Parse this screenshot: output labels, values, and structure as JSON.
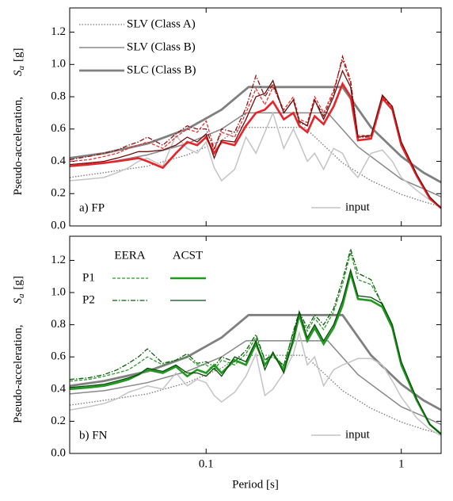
{
  "chart_data": [
    {
      "type": "line",
      "panel_label": "a) FP",
      "ylabel": "Pseudo-acceleration,",
      "ylabel_symbol": "S",
      "ylabel_subscript": "a",
      "ylabel_unit": "[g]",
      "log_x": true,
      "xlim": [
        0.02,
        1.6
      ],
      "ylim": [
        0,
        1.35
      ],
      "xticks": [
        0.1,
        1
      ],
      "xtick_labels": false,
      "yticks": [
        {
          "value": 0,
          "label": "0.0"
        },
        0.2,
        0.4,
        0.6,
        0.8,
        {
          "value": 1,
          "label": "1.0"
        },
        1.2
      ],
      "legend": "upper left",
      "x": [
        0.02,
        0.025,
        0.03,
        0.035,
        0.04,
        0.045,
        0.05,
        0.06,
        0.07,
        0.08,
        0.09,
        0.1,
        0.11,
        0.12,
        0.14,
        0.16,
        0.18,
        0.2,
        0.22,
        0.25,
        0.28,
        0.3,
        0.33,
        0.36,
        0.4,
        0.45,
        0.5,
        0.55,
        0.6,
        0.7,
        0.8,
        0.9,
        1.0,
        1.2,
        1.4,
        1.6
      ],
      "series": [
        {
          "name": "SLV (Class A)",
          "color": "#777777",
          "style": "dotted",
          "linewidth": 1.3,
          "x": [
            0.02,
            0.03,
            0.05,
            0.08,
            0.12,
            0.15,
            0.32,
            0.5,
            0.7,
            1.0,
            1.3,
            1.6
          ],
          "values": [
            0.3,
            0.33,
            0.37,
            0.44,
            0.53,
            0.61,
            0.61,
            0.39,
            0.28,
            0.195,
            0.15,
            0.12
          ]
        },
        {
          "name": "SLV (Class B)",
          "color": "#888888",
          "style": "solid",
          "linewidth": 1.5,
          "x": [
            0.02,
            0.03,
            0.05,
            0.08,
            0.12,
            0.16,
            0.42,
            0.6,
            1.0,
            1.3,
            1.6
          ],
          "values": [
            0.37,
            0.39,
            0.44,
            0.51,
            0.6,
            0.7,
            0.7,
            0.49,
            0.29,
            0.23,
            0.18
          ]
        },
        {
          "name": "SLC (Class B)",
          "color": "#808080",
          "style": "solid",
          "linewidth": 2.8,
          "x": [
            0.02,
            0.03,
            0.05,
            0.08,
            0.12,
            0.165,
            0.5,
            0.7,
            1.0,
            1.3,
            1.6
          ],
          "values": [
            0.42,
            0.45,
            0.51,
            0.6,
            0.72,
            0.86,
            0.86,
            0.61,
            0.43,
            0.33,
            0.27
          ]
        },
        {
          "name": "input",
          "legend_loc": "lower right",
          "color": "#c4c4c4",
          "style": "solid",
          "linewidth": 1.5,
          "values": [
            0.28,
            0.29,
            0.3,
            0.33,
            0.36,
            0.4,
            0.42,
            0.37,
            0.56,
            0.48,
            0.45,
            0.52,
            0.36,
            0.28,
            0.35,
            0.55,
            0.45,
            0.58,
            0.7,
            0.48,
            0.6,
            0.52,
            0.4,
            0.45,
            0.35,
            0.48,
            0.45,
            0.35,
            0.3,
            0.45,
            0.47,
            0.4,
            0.3,
            0.22,
            0.16,
            0.12
          ]
        },
        {
          "color": "#f03030",
          "style": "dashed",
          "linewidth": 1.3,
          "values": [
            0.4,
            0.41,
            0.43,
            0.45,
            0.48,
            0.5,
            0.52,
            0.48,
            0.55,
            0.6,
            0.58,
            0.65,
            0.48,
            0.58,
            0.55,
            0.7,
            0.85,
            0.75,
            0.86,
            0.72,
            0.8,
            0.66,
            0.64,
            0.8,
            0.7,
            0.84,
            1.03,
            0.88,
            0.56,
            0.56,
            0.8,
            0.73,
            0.52,
            0.31,
            0.17,
            0.11
          ]
        },
        {
          "color": "#8a1414",
          "style": "dashdot",
          "linewidth": 1.3,
          "values": [
            0.41,
            0.43,
            0.45,
            0.47,
            0.5,
            0.52,
            0.55,
            0.5,
            0.57,
            0.62,
            0.6,
            0.6,
            0.47,
            0.6,
            0.58,
            0.73,
            0.93,
            0.8,
            0.88,
            0.7,
            0.78,
            0.64,
            0.62,
            0.78,
            0.68,
            0.82,
            1.05,
            0.9,
            0.55,
            0.55,
            0.8,
            0.74,
            0.52,
            0.32,
            0.17,
            0.11
          ]
        },
        {
          "color": "#e8242a",
          "style": "solid",
          "linewidth": 2.6,
          "values": [
            0.37,
            0.38,
            0.39,
            0.4,
            0.41,
            0.42,
            0.4,
            0.36,
            0.45,
            0.52,
            0.5,
            0.55,
            0.45,
            0.52,
            0.5,
            0.62,
            0.7,
            0.72,
            0.77,
            0.66,
            0.7,
            0.62,
            0.58,
            0.68,
            0.63,
            0.74,
            0.88,
            0.8,
            0.53,
            0.54,
            0.79,
            0.72,
            0.5,
            0.31,
            0.17,
            0.11
          ]
        },
        {
          "color": "#6b0f0f",
          "style": "solid",
          "linewidth": 1.3,
          "values": [
            0.38,
            0.39,
            0.4,
            0.42,
            0.44,
            0.46,
            0.46,
            0.47,
            0.5,
            0.55,
            0.52,
            0.57,
            0.42,
            0.53,
            0.52,
            0.66,
            0.8,
            0.82,
            0.9,
            0.7,
            0.78,
            0.65,
            0.62,
            0.78,
            0.66,
            0.8,
            0.96,
            0.86,
            0.55,
            0.56,
            0.81,
            0.74,
            0.52,
            0.32,
            0.18,
            0.11
          ]
        }
      ]
    },
    {
      "type": "line",
      "panel_label": "b) FN",
      "xlabel": "Period [s]",
      "ylabel": "Pseudo-acceleration,",
      "ylabel_symbol": "S",
      "ylabel_subscript": "a",
      "ylabel_unit": "[g]",
      "log_x": true,
      "xlim": [
        0.02,
        1.6
      ],
      "ylim": [
        0,
        1.35
      ],
      "xticks": [
        0.1,
        1
      ],
      "xtick_labels": true,
      "yticks": [
        {
          "value": 0,
          "label": "0.0"
        },
        0.2,
        0.4,
        0.6,
        0.8,
        {
          "value": 1,
          "label": "1.0"
        },
        1.2
      ],
      "legend_columns": [
        "EERA",
        "ACST"
      ],
      "legend_rows": [
        "P1",
        "P2"
      ],
      "x": [
        0.02,
        0.025,
        0.03,
        0.035,
        0.04,
        0.045,
        0.05,
        0.06,
        0.07,
        0.08,
        0.09,
        0.1,
        0.11,
        0.12,
        0.14,
        0.16,
        0.18,
        0.2,
        0.22,
        0.25,
        0.28,
        0.3,
        0.33,
        0.36,
        0.4,
        0.45,
        0.5,
        0.55,
        0.6,
        0.7,
        0.8,
        0.9,
        1.0,
        1.2,
        1.4,
        1.6
      ],
      "series": [
        {
          "color": "#777777",
          "style": "dotted",
          "linewidth": 1.3,
          "x": [
            0.02,
            0.03,
            0.05,
            0.08,
            0.12,
            0.15,
            0.32,
            0.5,
            0.7,
            1.0,
            1.3,
            1.6
          ],
          "values": [
            0.3,
            0.33,
            0.37,
            0.44,
            0.53,
            0.61,
            0.61,
            0.39,
            0.28,
            0.195,
            0.15,
            0.12
          ]
        },
        {
          "color": "#888888",
          "style": "solid",
          "linewidth": 1.5,
          "x": [
            0.02,
            0.03,
            0.05,
            0.08,
            0.12,
            0.16,
            0.42,
            0.6,
            1.0,
            1.3,
            1.6
          ],
          "values": [
            0.37,
            0.39,
            0.44,
            0.51,
            0.6,
            0.7,
            0.7,
            0.49,
            0.29,
            0.23,
            0.18
          ]
        },
        {
          "color": "#808080",
          "style": "solid",
          "linewidth": 2.8,
          "x": [
            0.02,
            0.03,
            0.05,
            0.08,
            0.12,
            0.165,
            0.5,
            0.7,
            1.0,
            1.3,
            1.6
          ],
          "values": [
            0.42,
            0.45,
            0.51,
            0.6,
            0.72,
            0.86,
            0.86,
            0.61,
            0.43,
            0.33,
            0.27
          ]
        },
        {
          "name": "input",
          "legend_loc": "lower right",
          "color": "#c4c4c4",
          "style": "solid",
          "linewidth": 1.5,
          "values": [
            0.27,
            0.29,
            0.31,
            0.34,
            0.38,
            0.4,
            0.42,
            0.4,
            0.5,
            0.42,
            0.46,
            0.44,
            0.36,
            0.32,
            0.38,
            0.48,
            0.62,
            0.36,
            0.4,
            0.5,
            0.62,
            0.75,
            0.55,
            0.6,
            0.42,
            0.52,
            0.55,
            0.57,
            0.59,
            0.59,
            0.55,
            0.45,
            0.35,
            0.22,
            0.15,
            0.11
          ]
        },
        {
          "row": 0,
          "col": 0,
          "color": "#2a9a2a",
          "style": "dashed",
          "linewidth": 1.3,
          "values": [
            0.45,
            0.46,
            0.48,
            0.5,
            0.52,
            0.56,
            0.6,
            0.55,
            0.58,
            0.6,
            0.55,
            0.55,
            0.52,
            0.58,
            0.55,
            0.62,
            0.72,
            0.58,
            0.6,
            0.55,
            0.75,
            0.86,
            0.76,
            0.84,
            0.77,
            0.88,
            1.05,
            1.25,
            1.08,
            1.05,
            0.93,
            0.8,
            0.57,
            0.34,
            0.18,
            0.12
          ]
        },
        {
          "row": 1,
          "col": 0,
          "color": "#0e5e0e",
          "style": "dashdot",
          "linewidth": 1.3,
          "values": [
            0.46,
            0.47,
            0.49,
            0.52,
            0.56,
            0.6,
            0.65,
            0.56,
            0.58,
            0.62,
            0.56,
            0.57,
            0.54,
            0.6,
            0.57,
            0.64,
            0.74,
            0.58,
            0.62,
            0.54,
            0.76,
            0.88,
            0.78,
            0.86,
            0.8,
            0.9,
            1.08,
            1.27,
            1.12,
            1.08,
            0.92,
            0.79,
            0.56,
            0.34,
            0.18,
            0.12
          ]
        },
        {
          "row": 0,
          "col": 1,
          "color": "#1e9a1e",
          "style": "solid",
          "linewidth": 2.6,
          "values": [
            0.4,
            0.41,
            0.42,
            0.44,
            0.46,
            0.49,
            0.52,
            0.5,
            0.54,
            0.48,
            0.52,
            0.5,
            0.55,
            0.5,
            0.58,
            0.55,
            0.68,
            0.55,
            0.62,
            0.52,
            0.7,
            0.86,
            0.7,
            0.78,
            0.68,
            0.78,
            0.92,
            1.12,
            0.96,
            0.95,
            0.91,
            0.78,
            0.55,
            0.33,
            0.18,
            0.12
          ]
        },
        {
          "row": 1,
          "col": 1,
          "color": "#0c4a0c",
          "style": "solid",
          "linewidth": 1.3,
          "values": [
            0.41,
            0.42,
            0.43,
            0.45,
            0.47,
            0.49,
            0.53,
            0.51,
            0.55,
            0.5,
            0.5,
            0.48,
            0.53,
            0.48,
            0.6,
            0.57,
            0.7,
            0.52,
            0.63,
            0.5,
            0.72,
            0.88,
            0.72,
            0.8,
            0.7,
            0.8,
            0.95,
            1.14,
            0.98,
            0.97,
            0.93,
            0.8,
            0.57,
            0.34,
            0.18,
            0.12
          ]
        }
      ]
    }
  ]
}
